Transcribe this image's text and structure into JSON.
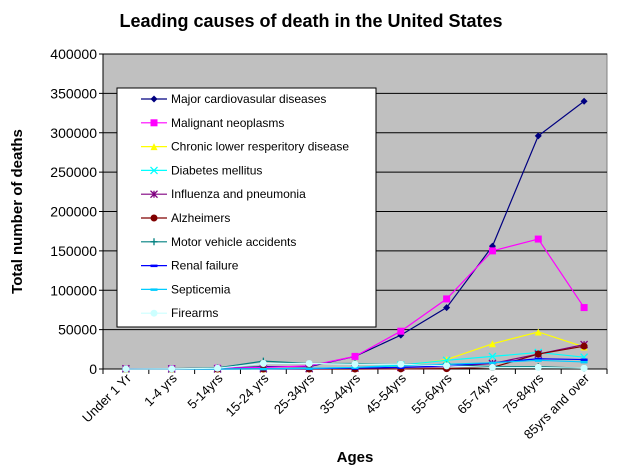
{
  "chart_data": {
    "type": "line",
    "title": "Leading causes of death in the United States",
    "xlabel": "Ages",
    "ylabel": "Total number of deaths",
    "ylim": [
      0,
      400000
    ],
    "yticks": [
      0,
      50000,
      100000,
      150000,
      200000,
      250000,
      300000,
      350000,
      400000
    ],
    "grid": true,
    "legend_placement": "top-left",
    "plot_background": "#c0c0c0",
    "categories": [
      "Under 1 Yr",
      "1-4 yrs",
      "5-14yrs",
      "15-24 yrs",
      "25-34yrs",
      "35-44yrs",
      "45-54yrs",
      "55-64yrs",
      "65-74yrs",
      "75-84yrs",
      "85yrs and over"
    ],
    "series": [
      {
        "name": "Major cardiovasular diseases",
        "color": "#000080",
        "marker": "diamond",
        "values": [
          500,
          300,
          500,
          3000,
          3000,
          16000,
          43000,
          78000,
          156000,
          296000,
          340000
        ]
      },
      {
        "name": "Malignant neoplasms",
        "color": "#ff00ff",
        "marker": "square",
        "values": [
          100,
          400,
          1000,
          2000,
          4000,
          16000,
          48000,
          89000,
          150000,
          165000,
          78000
        ]
      },
      {
        "name": "Chronic lower resperitory disease",
        "color": "#ffff00",
        "marker": "triangle",
        "values": [
          0,
          0,
          100,
          200,
          400,
          1000,
          4000,
          12000,
          32000,
          47000,
          28000
        ]
      },
      {
        "name": "Diabetes mellitus",
        "color": "#00ffff",
        "marker": "x",
        "values": [
          0,
          0,
          100,
          200,
          700,
          2000,
          5000,
          11000,
          16000,
          21000,
          15000
        ]
      },
      {
        "name": "Influenza and pneumonia",
        "color": "#800080",
        "marker": "star",
        "values": [
          300,
          100,
          100,
          200,
          500,
          1000,
          2000,
          3000,
          7000,
          19000,
          31000
        ]
      },
      {
        "name": "Alzheimers",
        "color": "#800000",
        "marker": "circle",
        "values": [
          0,
          0,
          0,
          0,
          0,
          0,
          100,
          500,
          2000,
          19000,
          29000
        ]
      },
      {
        "name": "Motor vehicle accidents",
        "color": "#008080",
        "marker": "plus",
        "values": [
          100,
          500,
          1500,
          10000,
          7000,
          7000,
          6000,
          5000,
          3000,
          3000,
          1000
        ]
      },
      {
        "name": "Renal failure",
        "color": "#0000ff",
        "marker": "dash",
        "values": [
          0,
          0,
          0,
          100,
          500,
          1000,
          2000,
          4000,
          8000,
          13000,
          12000
        ]
      },
      {
        "name": "Septicemia",
        "color": "#00ccff",
        "marker": "dash",
        "values": [
          0,
          0,
          0,
          200,
          800,
          2000,
          4000,
          6000,
          8000,
          11000,
          9000
        ]
      },
      {
        "name": "Firearms",
        "color": "#ccffff",
        "marker": "circle",
        "values": [
          100,
          200,
          1000,
          7000,
          7000,
          6000,
          6000,
          4000,
          2000,
          2000,
          1000
        ]
      }
    ]
  }
}
